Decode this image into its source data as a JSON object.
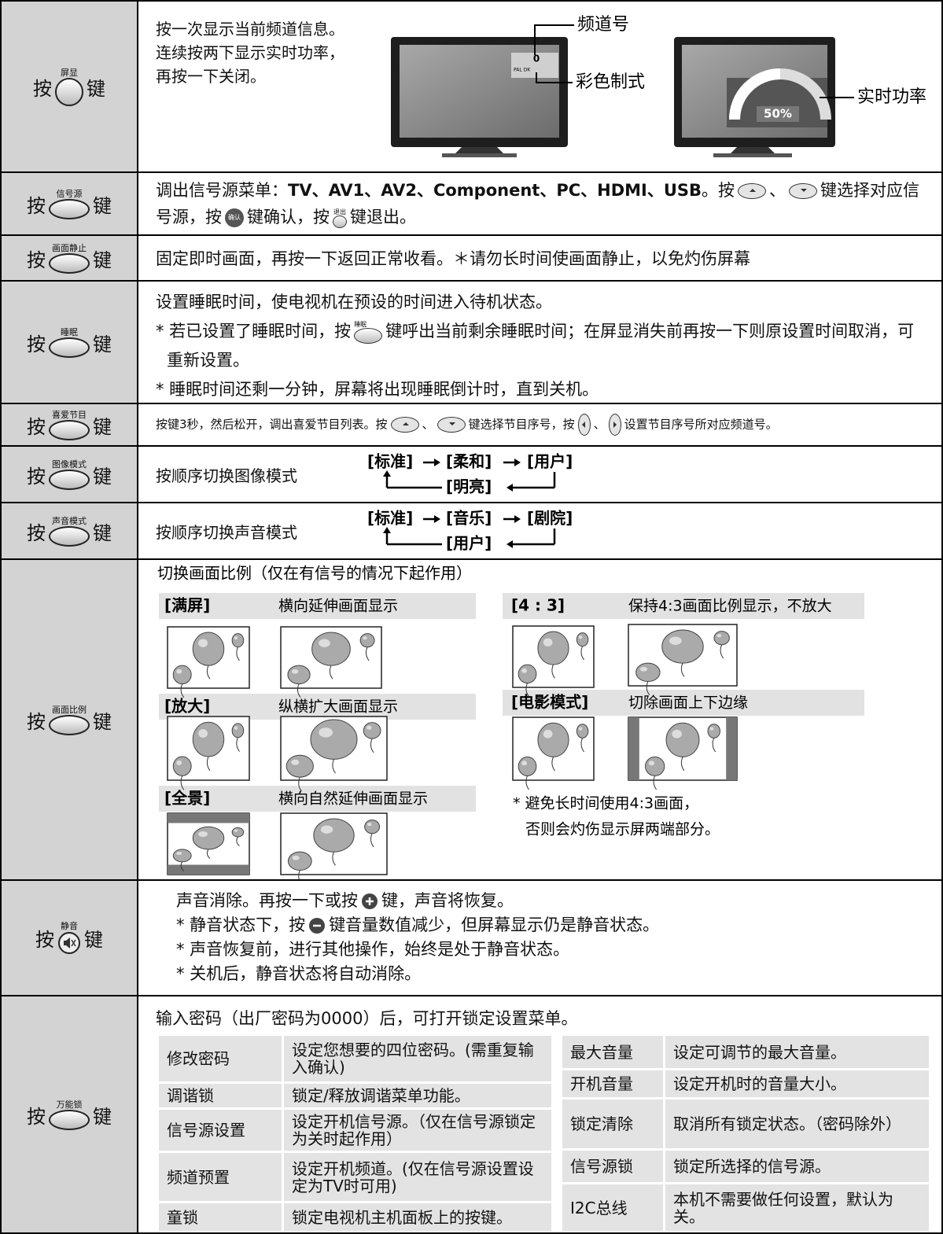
{
  "rows": [
    {
      "press": "按",
      "key": "屏显",
      "suffix": "键",
      "lines": [
        "按一次显示当前频道信息。",
        "连续按两下显示实时功率，",
        "再按一下关闭。"
      ],
      "tv1": {
        "channel": "0",
        "system": "PAL DK",
        "label_channel": "频道号",
        "label_system": "彩色制式"
      },
      "tv2": {
        "percent": "50%",
        "label": "实时功率"
      }
    },
    {
      "press": "按",
      "key": "信号源",
      "suffix": "键",
      "content": {
        "t1": "调出信号源菜单：",
        "sources": "TV、AV1、AV2、Component、PC、HDMI、USB",
        "t2": "。按",
        "t3": "、",
        "t4": "键选择对应信号源，按",
        "confirm": "确认",
        "t5": "键确认，按",
        "exit": "退出",
        "t6": "键退出。"
      }
    },
    {
      "press": "按",
      "key": "画面静止",
      "suffix": "键",
      "text": "固定即时画面，再按一下返回正常收看。＊请勿长时间使画面静止，以免灼伤屏幕"
    },
    {
      "press": "按",
      "key": "睡眠",
      "suffix": "键",
      "content": {
        "line1": "设置睡眠时间，使电视机在预设的时间进入待机状态。",
        "note1a": "* 若已设置了睡眠时间，按",
        "note1_key": "睡眠",
        "note1b": "键呼出当前剩余睡眠时间；在屏显消失前再按一下则原设置时间取消，可重新设置。",
        "note2": "* 睡眠时间还剩一分钟，屏幕将出现睡眠倒计时，直到关机。"
      }
    },
    {
      "press": "按",
      "key": "喜爱节目",
      "suffix": "键",
      "content": {
        "a": "按键3秒，然后松开，调出喜爱节目列表。按",
        "b": "、",
        "c": "键选择节目序号，按",
        "d": "、",
        "e": "设置节目序号所对应频道号。"
      }
    },
    {
      "press": "按",
      "key": "图像模式",
      "suffix": "键",
      "text": "按顺序切换图像模式",
      "flow": [
        "[标准]",
        "[柔和]",
        "[用户]",
        "[明亮]"
      ]
    },
    {
      "press": "按",
      "key": "声音模式",
      "suffix": "键",
      "text": "按顺序切换声音模式",
      "flow": [
        "[标准]",
        "[音乐]",
        "[剧院]",
        "[用户]"
      ]
    },
    {
      "press": "按",
      "key": "画面比例",
      "suffix": "键",
      "intro": "切换画面比例（仅在有信号的情况下起作用）",
      "modes": [
        {
          "name": "[满屏]",
          "desc": "横向延伸画面显示"
        },
        {
          "name": "[4 : 3]",
          "desc": "保持4:3画面比例显示，不放大"
        },
        {
          "name": "[放大]",
          "desc": "纵横扩大画面显示"
        },
        {
          "name": "[电影模式]",
          "desc": "切除画面上下边缘"
        },
        {
          "name": "[全景]",
          "desc": "横向自然延伸画面显示"
        }
      ],
      "note": [
        "* 避免长时间使用4:3画面，",
        "否则会灼伤显示屏两端部分。"
      ]
    },
    {
      "press": "按",
      "key": "静音",
      "suffix": "键",
      "content": {
        "l1a": "声音消除。再按一下或按",
        "l1b": "键，声音将恢复。",
        "l2a": "* 静音状态下，按",
        "l2b": "键音量数值减少，但屏幕显示仍是静音状态。",
        "l3": "* 声音恢复前，进行其他操作，始终是处于静音状态。",
        "l4": "* 关机后，静音状态将自动消除。"
      }
    },
    {
      "press": "按",
      "key": "万能锁",
      "suffix": "键",
      "intro": "输入密码（出厂密码为0000）后，可打开锁定设置菜单。",
      "left": [
        [
          "修改密码",
          "设定您想要的四位密码。(需重复输入确认)"
        ],
        [
          "调谐锁",
          "锁定/释放调谐菜单功能。"
        ],
        [
          "信号源设置",
          "设定开机信号源。（仅在信号源锁定为关时起作用）"
        ],
        [
          "频道预置",
          "设定开机频道。(仅在信号源设置设定为TV时可用)"
        ],
        [
          "童锁",
          "锁定电视机主机面板上的按键。"
        ]
      ],
      "right": [
        [
          "最大音量",
          "设定可调节的最大音量。"
        ],
        [
          "开机音量",
          "设定开机时的音量大小。"
        ],
        [
          "锁定清除",
          "取消所有锁定状态。（密码除外）"
        ],
        [
          "信号源锁",
          "锁定所选择的信号源。"
        ],
        [
          "I2C总线",
          "本机不需要做任何设置，默认为关。"
        ]
      ]
    }
  ]
}
